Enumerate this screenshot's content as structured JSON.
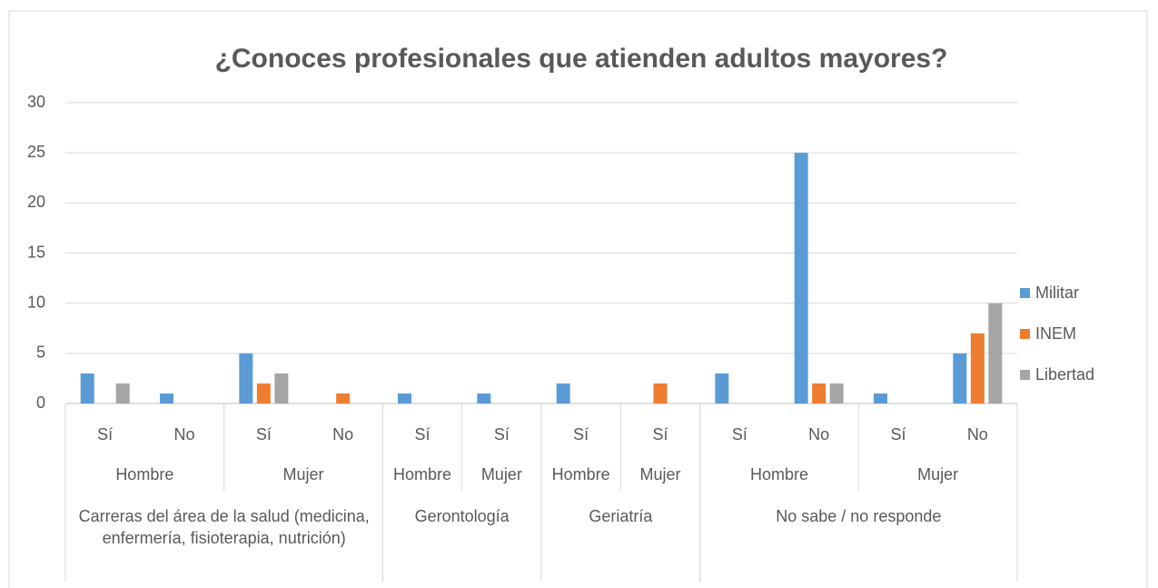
{
  "chart_data": {
    "type": "bar",
    "title": "¿Conoces profesionales que atienden adultos mayores?",
    "categories": [
      [
        "Carreras del área de la salud (medicina, enfermería, fisioterapia, nutrición)",
        "Hombre",
        "Sí"
      ],
      [
        "Carreras del área de la salud (medicina, enfermería, fisioterapia, nutrición)",
        "Hombre",
        "No"
      ],
      [
        "Carreras del área de la salud (medicina, enfermería, fisioterapia, nutrición)",
        "Mujer",
        "Sí"
      ],
      [
        "Carreras del área de la salud (medicina, enfermería, fisioterapia, nutrición)",
        "Mujer",
        "No"
      ],
      [
        "Gerontología",
        "Hombre",
        "Sí"
      ],
      [
        "Gerontología",
        "Mujer",
        "Sí"
      ],
      [
        "Geriatría",
        "Hombre",
        "Sí"
      ],
      [
        "Geriatría",
        "Mujer",
        "Sí"
      ],
      [
        "No sabe / no responde",
        "Hombre",
        "Sí"
      ],
      [
        "No sabe / no responde",
        "Hombre",
        "No"
      ],
      [
        "No sabe / no responde",
        "Mujer",
        "Sí"
      ],
      [
        "No sabe / no responde",
        "Mujer",
        "No"
      ]
    ],
    "series": [
      {
        "name": "Militar",
        "color": "#5b9bd5",
        "values": [
          3,
          1,
          5,
          null,
          1,
          1,
          2,
          null,
          3,
          25,
          1,
          5
        ]
      },
      {
        "name": "INEM",
        "color": "#ed7d31",
        "values": [
          null,
          null,
          2,
          1,
          null,
          null,
          null,
          2,
          null,
          2,
          null,
          7
        ]
      },
      {
        "name": "Libertad",
        "color": "#a5a5a5",
        "values": [
          2,
          null,
          3,
          null,
          null,
          null,
          null,
          null,
          null,
          2,
          null,
          10
        ]
      }
    ],
    "ylim": [
      0,
      30
    ],
    "yticks": [
      0,
      5,
      10,
      15,
      20,
      25,
      30
    ],
    "grid": true,
    "legend": "right"
  }
}
